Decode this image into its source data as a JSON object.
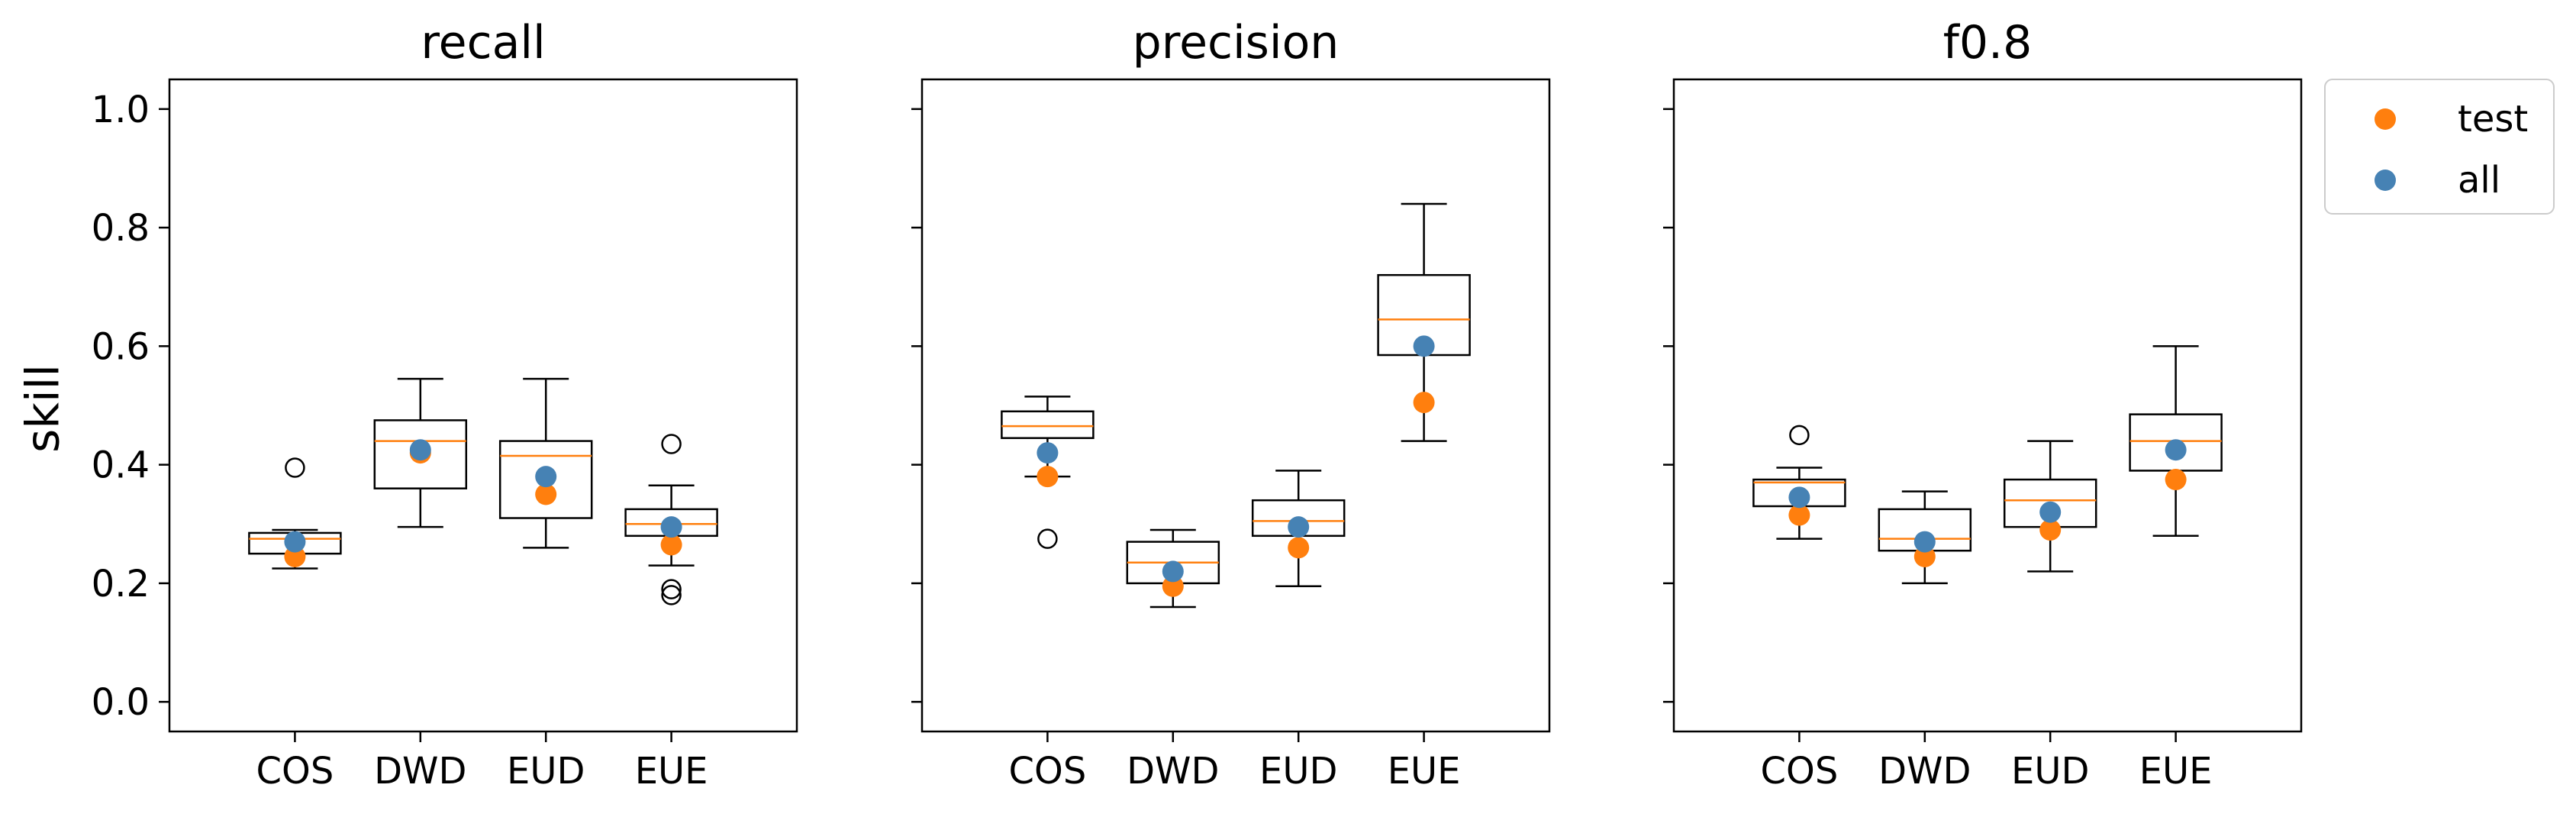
{
  "chart_data": {
    "type": "box",
    "categories": [
      "COS",
      "DWD",
      "EUD",
      "EUE"
    ],
    "ylabel": "skill",
    "ylim": [
      -0.05,
      1.05
    ],
    "yticks": [
      "0.0",
      "0.2",
      "0.4",
      "0.6",
      "0.8",
      "1.0"
    ],
    "colors": {
      "test": "#ff7f0e",
      "all": "#4682b4",
      "median": "#ff7f0e"
    },
    "legend": {
      "placement": "outside-top-right",
      "entries": [
        "test",
        "all"
      ]
    },
    "panels": [
      {
        "title": "recall",
        "boxes": [
          {
            "whislo": 0.225,
            "q1": 0.25,
            "med": 0.275,
            "q3": 0.285,
            "whishi": 0.29,
            "fliers": [
              0.395
            ]
          },
          {
            "whislo": 0.295,
            "q1": 0.36,
            "med": 0.44,
            "q3": 0.475,
            "whishi": 0.545,
            "fliers": []
          },
          {
            "whislo": 0.26,
            "q1": 0.31,
            "med": 0.415,
            "q3": 0.44,
            "whishi": 0.545,
            "fliers": []
          },
          {
            "whislo": 0.23,
            "q1": 0.28,
            "med": 0.3,
            "q3": 0.325,
            "whishi": 0.365,
            "fliers": [
              0.435,
              0.19,
              0.18
            ]
          }
        ],
        "test": [
          0.245,
          0.42,
          0.35,
          0.265
        ],
        "all": [
          0.27,
          0.425,
          0.38,
          0.295
        ]
      },
      {
        "title": "precision",
        "boxes": [
          {
            "whislo": 0.38,
            "q1": 0.445,
            "med": 0.465,
            "q3": 0.49,
            "whishi": 0.515,
            "fliers": [
              0.275
            ]
          },
          {
            "whislo": 0.16,
            "q1": 0.2,
            "med": 0.235,
            "q3": 0.27,
            "whishi": 0.29,
            "fliers": []
          },
          {
            "whislo": 0.195,
            "q1": 0.28,
            "med": 0.305,
            "q3": 0.34,
            "whishi": 0.39,
            "fliers": []
          },
          {
            "whislo": 0.44,
            "q1": 0.585,
            "med": 0.645,
            "q3": 0.72,
            "whishi": 0.84,
            "fliers": []
          }
        ],
        "test": [
          0.38,
          0.195,
          0.26,
          0.505
        ],
        "all": [
          0.42,
          0.22,
          0.295,
          0.6
        ]
      },
      {
        "title": "f0.8",
        "boxes": [
          {
            "whislo": 0.275,
            "q1": 0.33,
            "med": 0.37,
            "q3": 0.375,
            "whishi": 0.395,
            "fliers": [
              0.45
            ]
          },
          {
            "whislo": 0.2,
            "q1": 0.255,
            "med": 0.275,
            "q3": 0.325,
            "whishi": 0.355,
            "fliers": []
          },
          {
            "whislo": 0.22,
            "q1": 0.295,
            "med": 0.34,
            "q3": 0.375,
            "whishi": 0.44,
            "fliers": []
          },
          {
            "whislo": 0.28,
            "q1": 0.39,
            "med": 0.44,
            "q3": 0.485,
            "whishi": 0.6,
            "fliers": []
          }
        ],
        "test": [
          0.315,
          0.245,
          0.29,
          0.375
        ],
        "all": [
          0.345,
          0.27,
          0.32,
          0.425
        ]
      }
    ]
  }
}
